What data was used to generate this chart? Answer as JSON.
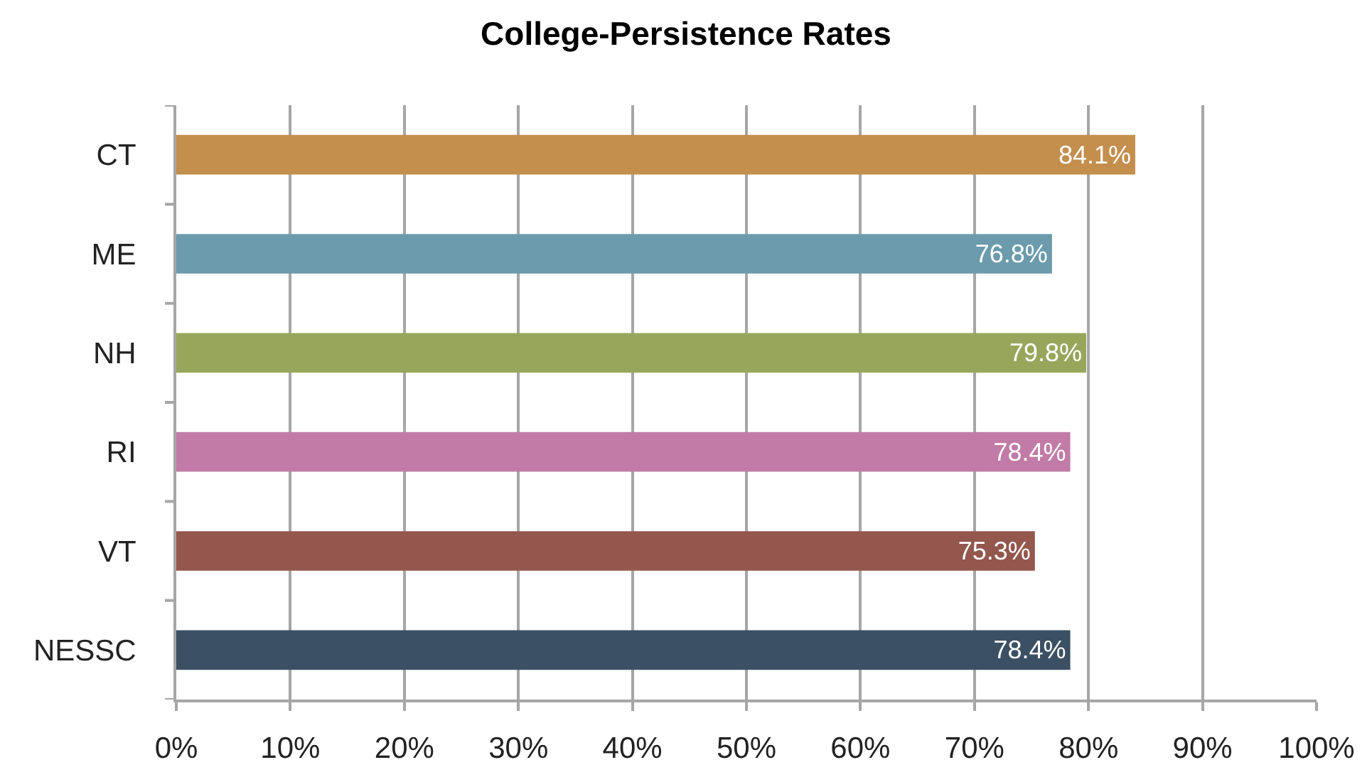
{
  "chart_data": {
    "type": "bar",
    "orientation": "horizontal",
    "title": "College-Persistence Rates",
    "categories": [
      "CT",
      "ME",
      "NH",
      "RI",
      "VT",
      "NESSC"
    ],
    "values": [
      84.1,
      76.8,
      79.8,
      78.4,
      75.3,
      78.4
    ],
    "colors": [
      "#c48e4d",
      "#6b9bac",
      "#98a65c",
      "#c17ba6",
      "#94574d",
      "#3c5064"
    ],
    "value_labels": [
      "84.1%",
      "76.8%",
      "79.8%",
      "78.4%",
      "75.3%",
      "78.4%"
    ],
    "xlim": [
      0,
      100
    ],
    "xticks": [
      {
        "value": 0,
        "label": "0%"
      },
      {
        "value": 10,
        "label": "10%"
      },
      {
        "value": 20,
        "label": "20%"
      },
      {
        "value": 30,
        "label": "30%"
      },
      {
        "value": 40,
        "label": "40%"
      },
      {
        "value": 50,
        "label": "50%"
      },
      {
        "value": 60,
        "label": "60%"
      },
      {
        "value": 70,
        "label": "70%"
      },
      {
        "value": 80,
        "label": "80%"
      },
      {
        "value": 90,
        "label": "90%"
      },
      {
        "value": 100,
        "label": "100%"
      }
    ],
    "grid": "x"
  }
}
